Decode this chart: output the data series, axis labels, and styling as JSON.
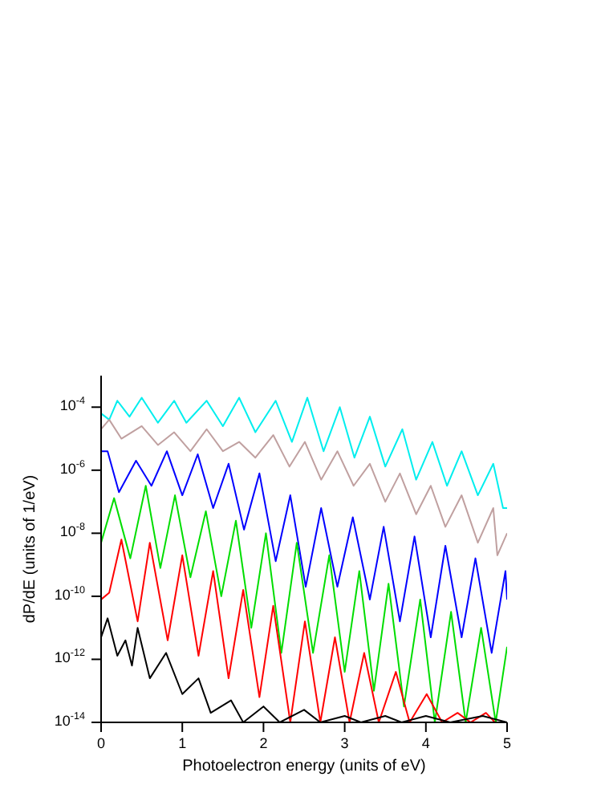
{
  "chart_data": {
    "type": "line",
    "xlabel": "Photoelectron energy (units of eV)",
    "ylabel": "dP/dE (units of 1/eV)",
    "log": "y",
    "marker": "none",
    "line_style": "solid",
    "xlim": [
      0,
      5
    ],
    "xticks": [
      0,
      1,
      2,
      3,
      4,
      5
    ],
    "ylim": [
      1e-14,
      0.001
    ],
    "yticks": [
      {
        "value": 1e-14,
        "label": "10$^{-14}$"
      },
      {
        "value": 1e-12,
        "label": "10$^{-12}$"
      },
      {
        "value": 1e-10,
        "label": "10$^{-10}$"
      },
      {
        "value": 1e-08,
        "label": "10$^{-8}$"
      },
      {
        "value": 1e-06,
        "label": "10$^{-6}$"
      },
      {
        "value": 0.0001,
        "label": "10$^{-4}$"
      }
    ],
    "series": [
      {
        "color": "#00eeee",
        "x": [
          0,
          0.1,
          0.2,
          0.35,
          0.5,
          0.7,
          0.9,
          1.05,
          1.3,
          1.5,
          1.7,
          1.9,
          2.15,
          2.35,
          2.54,
          2.74,
          2.94,
          3.12,
          3.31,
          3.5,
          3.71,
          3.88,
          4.08,
          4.26,
          4.44,
          4.64,
          4.83,
          4.95,
          5
        ],
        "values": [
          6.3e-05,
          4e-05,
          0.00016,
          5e-05,
          0.0002,
          3.2e-05,
          0.00016,
          3.2e-05,
          0.00016,
          2.5e-05,
          0.0002,
          1.6e-05,
          0.00016,
          7.9e-06,
          0.0002,
          4e-06,
          0.0001,
          2.5e-06,
          5e-05,
          1.3e-06,
          2e-05,
          5e-07,
          7.9e-06,
          3.2e-07,
          4e-06,
          1.6e-07,
          1.6e-06,
          6.3e-08,
          6.3e-08
        ]
      },
      {
        "color": "#c0a0a0",
        "x": [
          0,
          0.1,
          0.25,
          0.5,
          0.7,
          0.9,
          1.1,
          1.3,
          1.5,
          1.7,
          1.9,
          2.12,
          2.32,
          2.51,
          2.71,
          2.91,
          3.11,
          3.31,
          3.5,
          3.68,
          3.88,
          4.06,
          4.24,
          4.44,
          4.64,
          4.83,
          4.88,
          5
        ],
        "values": [
          2e-05,
          4e-05,
          1e-05,
          2.5e-05,
          6.3e-06,
          1.6e-05,
          4e-06,
          2e-05,
          4e-06,
          7.9e-06,
          2.5e-06,
          1.3e-05,
          1.3e-06,
          7.9e-06,
          5e-07,
          4e-06,
          3.2e-07,
          1.6e-06,
          1e-07,
          7.9e-07,
          4e-08,
          3.2e-07,
          1.6e-08,
          1.6e-07,
          5e-09,
          6.3e-08,
          2e-09,
          1e-08
        ]
      },
      {
        "color": "#0000ff",
        "x": [
          0,
          0.08,
          0.22,
          0.43,
          0.62,
          0.81,
          1.0,
          1.19,
          1.38,
          1.57,
          1.76,
          1.95,
          2.15,
          2.33,
          2.52,
          2.71,
          2.91,
          3.1,
          3.31,
          3.48,
          3.68,
          3.86,
          4.06,
          4.24,
          4.44,
          4.61,
          4.81,
          4.98,
          5
        ],
        "values": [
          4e-06,
          4e-06,
          2e-07,
          2e-06,
          3.2e-07,
          4e-06,
          1.6e-07,
          3.2e-06,
          6.3e-08,
          1.6e-06,
          1.3e-08,
          7.9e-07,
          1.3e-09,
          1.6e-07,
          2e-10,
          6.3e-08,
          2e-10,
          3.2e-08,
          7.9e-11,
          1.6e-08,
          1.6e-11,
          7.9e-09,
          5e-12,
          4e-09,
          5e-12,
          1.6e-09,
          1.6e-12,
          6.3e-10,
          7.9e-11
        ]
      },
      {
        "color": "#00dd00",
        "x": [
          0,
          0.16,
          0.36,
          0.55,
          0.73,
          0.91,
          1.1,
          1.29,
          1.48,
          1.66,
          1.85,
          2.03,
          2.22,
          2.41,
          2.61,
          2.81,
          3.0,
          3.18,
          3.36,
          3.54,
          3.73,
          3.93,
          4.11,
          4.31,
          4.49,
          4.68,
          4.86,
          5
        ],
        "values": [
          5e-09,
          1.3e-07,
          1.6e-09,
          3.2e-07,
          7.9e-10,
          1.6e-07,
          4e-10,
          5e-08,
          1e-10,
          2.5e-08,
          1e-11,
          1e-08,
          1.6e-12,
          5e-09,
          1.6e-12,
          2e-09,
          4e-13,
          6.3e-10,
          1e-13,
          2.5e-10,
          3.2e-14,
          7.9e-11,
          1e-14,
          3.2e-11,
          1e-14,
          1e-11,
          1e-14,
          2.5e-12
        ]
      },
      {
        "color": "#ff0000",
        "x": [
          0,
          0.1,
          0.25,
          0.45,
          0.6,
          0.82,
          1.0,
          1.2,
          1.38,
          1.57,
          1.75,
          1.95,
          2.12,
          2.33,
          2.51,
          2.7,
          2.88,
          3.06,
          3.24,
          3.42,
          3.63,
          3.8,
          4.01,
          4.2,
          4.39,
          4.55,
          4.74,
          4.85
        ],
        "values": [
          7.9e-11,
          1.3e-10,
          6.3e-09,
          1.6e-11,
          5e-09,
          4e-12,
          2e-09,
          1.3e-12,
          6.3e-10,
          2.5e-13,
          1.6e-10,
          6.3e-14,
          5e-11,
          1e-14,
          1.6e-11,
          1e-14,
          5e-12,
          1e-14,
          1.6e-12,
          1e-14,
          4e-13,
          1e-14,
          7.9e-14,
          1e-14,
          2e-14,
          1e-14,
          2e-14,
          1e-14
        ]
      },
      {
        "color": "#000000",
        "x": [
          0,
          0.08,
          0.2,
          0.3,
          0.38,
          0.45,
          0.6,
          0.8,
          1.0,
          1.2,
          1.35,
          1.6,
          1.75,
          2.0,
          2.2,
          2.5,
          2.7,
          3.0,
          3.2,
          3.5,
          3.7,
          4.0,
          4.3,
          4.7,
          5
        ],
        "values": [
          5e-12,
          2e-11,
          1.3e-12,
          4e-12,
          6.3e-13,
          1e-11,
          2.5e-13,
          1.6e-12,
          7.9e-14,
          2.5e-13,
          2e-14,
          5e-14,
          1e-14,
          3.2e-14,
          1e-14,
          2.5e-14,
          1e-14,
          1.6e-14,
          1e-14,
          1.6e-14,
          1e-14,
          1.6e-14,
          1e-14,
          1.6e-14,
          1e-14
        ]
      }
    ]
  }
}
